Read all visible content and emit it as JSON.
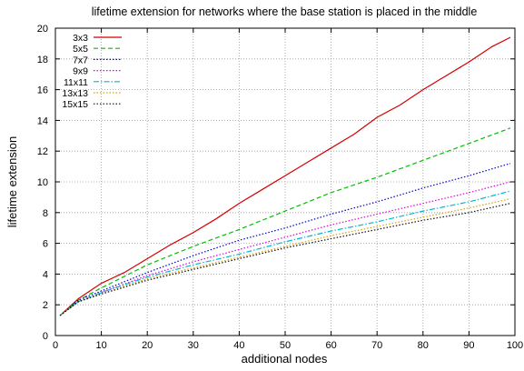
{
  "chart_data": {
    "type": "line",
    "title": "lifetime extension for networks where the base station is placed in the middle",
    "xlabel": "additional nodes",
    "ylabel": "lifetime extension",
    "xlim": [
      0,
      100
    ],
    "ylim": [
      0,
      20
    ],
    "xticks": [
      0,
      10,
      20,
      30,
      40,
      50,
      60,
      70,
      80,
      90,
      100
    ],
    "yticks": [
      0,
      2,
      4,
      6,
      8,
      10,
      12,
      14,
      16,
      18,
      20
    ],
    "grid": true,
    "legend_position": "top-left",
    "series": [
      {
        "name": "3x3",
        "color": "#d40000",
        "dash": "solid",
        "x": [
          1,
          5,
          10,
          15,
          20,
          25,
          30,
          35,
          40,
          45,
          50,
          55,
          60,
          65,
          70,
          75,
          80,
          85,
          90,
          95,
          99
        ],
        "y": [
          1.3,
          2.4,
          3.4,
          4.1,
          5.0,
          5.9,
          6.7,
          7.6,
          8.6,
          9.5,
          10.4,
          11.3,
          12.2,
          13.1,
          14.2,
          15.0,
          16.0,
          16.9,
          17.8,
          18.8,
          19.4
        ]
      },
      {
        "name": "5x5",
        "color": "#00c000",
        "dash": "5,3",
        "x": [
          1,
          5,
          10,
          20,
          30,
          40,
          50,
          60,
          70,
          80,
          90,
          99
        ],
        "y": [
          1.3,
          2.3,
          3.1,
          4.6,
          5.8,
          6.9,
          8.1,
          9.3,
          10.3,
          11.4,
          12.5,
          13.5
        ]
      },
      {
        "name": "7x7",
        "color": "#0000cc",
        "dash": "1.5,2",
        "x": [
          1,
          5,
          10,
          20,
          30,
          40,
          50,
          60,
          70,
          80,
          90,
          99
        ],
        "y": [
          1.3,
          2.3,
          2.9,
          4.1,
          5.2,
          6.2,
          7.0,
          7.9,
          8.7,
          9.6,
          10.4,
          11.2
        ]
      },
      {
        "name": "9x9",
        "color": "#e000e0",
        "dash": "1.5,2",
        "x": [
          1,
          5,
          10,
          20,
          30,
          40,
          50,
          60,
          70,
          80,
          90,
          99
        ],
        "y": [
          1.3,
          2.2,
          2.8,
          3.9,
          4.8,
          5.6,
          6.4,
          7.2,
          7.9,
          8.6,
          9.3,
          10.0
        ]
      },
      {
        "name": "11x11",
        "color": "#00b8d8",
        "dash": "6,2,1.5,2",
        "x": [
          1,
          5,
          10,
          20,
          30,
          40,
          50,
          60,
          70,
          80,
          90,
          99
        ],
        "y": [
          1.3,
          2.2,
          2.8,
          3.8,
          4.6,
          5.3,
          6.1,
          6.8,
          7.4,
          8.1,
          8.7,
          9.4
        ]
      },
      {
        "name": "13x13",
        "color": "#e0a000",
        "dash": "1.5,2",
        "x": [
          1,
          5,
          10,
          20,
          30,
          40,
          50,
          60,
          70,
          80,
          90,
          99
        ],
        "y": [
          1.3,
          2.2,
          2.7,
          3.7,
          4.4,
          5.1,
          5.8,
          6.5,
          7.1,
          7.7,
          8.3,
          8.9
        ]
      },
      {
        "name": "15x15",
        "color": "#111111",
        "dash": "1.5,2",
        "x": [
          1,
          5,
          10,
          20,
          30,
          40,
          50,
          60,
          70,
          80,
          90,
          99
        ],
        "y": [
          1.3,
          2.2,
          2.7,
          3.6,
          4.3,
          5.0,
          5.7,
          6.3,
          6.9,
          7.5,
          8.0,
          8.6
        ]
      }
    ]
  }
}
